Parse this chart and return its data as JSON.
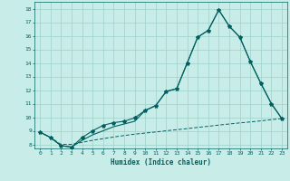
{
  "xlabel": "Humidex (Indice chaleur)",
  "background_color": "#c8ede8",
  "grid_color": "#9ecfca",
  "line_color": "#006060",
  "xlim": [
    -0.5,
    23.5
  ],
  "ylim": [
    7.7,
    18.5
  ],
  "xticks": [
    0,
    1,
    2,
    3,
    4,
    5,
    6,
    7,
    8,
    9,
    10,
    11,
    12,
    13,
    14,
    15,
    16,
    17,
    18,
    19,
    20,
    21,
    22,
    23
  ],
  "yticks": [
    8,
    9,
    10,
    11,
    12,
    13,
    14,
    15,
    16,
    17,
    18
  ],
  "line1_x": [
    0,
    1,
    2,
    3,
    4,
    5,
    6,
    7,
    8,
    9,
    10,
    11,
    12,
    13,
    14,
    15,
    16,
    17,
    18,
    19,
    20,
    21,
    22,
    23
  ],
  "line1_y": [
    8.9,
    8.5,
    7.9,
    7.8,
    8.5,
    9.0,
    9.4,
    9.6,
    9.7,
    9.95,
    10.5,
    10.85,
    11.9,
    12.1,
    14.0,
    15.9,
    16.4,
    17.9,
    16.7,
    15.9,
    14.1,
    12.5,
    11.0,
    9.9
  ],
  "line2_x": [
    0,
    1,
    2,
    3,
    4,
    5,
    6,
    7,
    8,
    9,
    10,
    11,
    12,
    13,
    14,
    15,
    16,
    17,
    18,
    19,
    20,
    21,
    22,
    23
  ],
  "line2_y": [
    8.9,
    8.5,
    7.9,
    7.8,
    8.3,
    8.7,
    9.0,
    9.3,
    9.5,
    9.7,
    10.5,
    10.85,
    11.9,
    12.1,
    14.0,
    15.9,
    16.4,
    17.9,
    16.7,
    15.9,
    14.1,
    12.5,
    11.0,
    9.9
  ],
  "line3_x": [
    0,
    1,
    2,
    3,
    4,
    5,
    6,
    7,
    8,
    9,
    10,
    11,
    12,
    13,
    14,
    15,
    16,
    17,
    18,
    19,
    20,
    21,
    22,
    23
  ],
  "line3_y": [
    8.9,
    8.5,
    8.0,
    8.0,
    8.15,
    8.3,
    8.42,
    8.54,
    8.65,
    8.75,
    8.83,
    8.91,
    9.0,
    9.08,
    9.16,
    9.25,
    9.33,
    9.42,
    9.5,
    9.58,
    9.65,
    9.73,
    9.82,
    9.9
  ]
}
